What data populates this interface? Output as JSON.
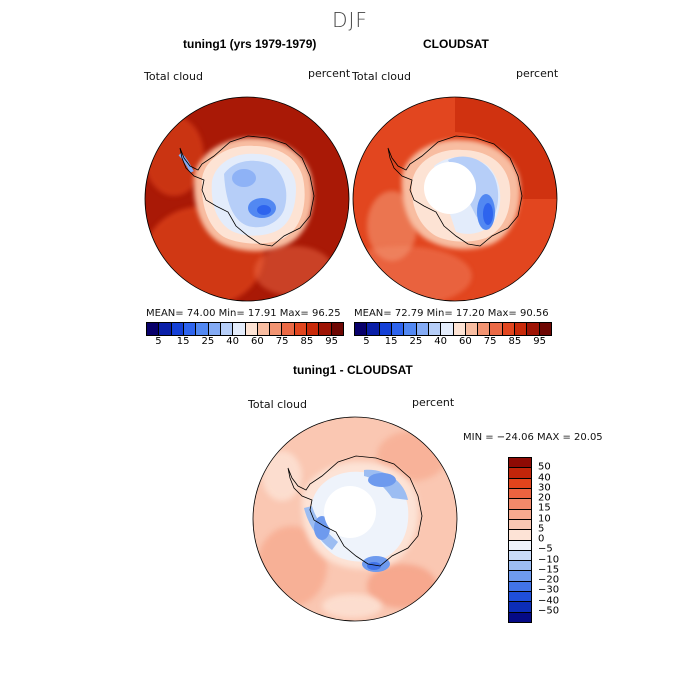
{
  "season": "DJF",
  "panels": {
    "left": {
      "title": "tuning1 (yrs 1979-1979)",
      "variable": "Total cloud",
      "units": "percent",
      "stats": "MEAN=   74.00   Min=   17.91   Max=   96.25"
    },
    "right": {
      "title": "CLOUDSAT",
      "variable": "Total cloud",
      "units": "percent",
      "stats": "MEAN=   72.79   Min=   17.20   Max=   90.56"
    },
    "diff": {
      "title": "tuning1 - CLOUDSAT",
      "variable": "Total cloud",
      "units": "percent",
      "stats": "MIN = −24.06  MAX =   20.05"
    }
  },
  "colorbar_abs": {
    "ticks": [
      "5",
      "15",
      "25",
      "40",
      "60",
      "75",
      "85",
      "95"
    ],
    "colors": [
      "#08006b",
      "#0a1fa8",
      "#1440d6",
      "#2e64ee",
      "#5288f2",
      "#84abf5",
      "#b6cef8",
      "#e3ecfb",
      "#fde3d4",
      "#f8bda1",
      "#f29472",
      "#eb6a46",
      "#e2461f",
      "#c92a0a",
      "#9e1405",
      "#6e0703"
    ]
  },
  "colorbar_diff": {
    "ticks": [
      "50",
      "40",
      "30",
      "20",
      "15",
      "10",
      "5",
      "0",
      "−5",
      "−10",
      "−15",
      "−20",
      "−30",
      "−40",
      "−50"
    ],
    "colors": [
      "#8e0a04",
      "#c2250a",
      "#e2441c",
      "#ec6340",
      "#f3896a",
      "#f7aa8f",
      "#fac7b2",
      "#fde3d6",
      "#eef3fb",
      "#c9dbf7",
      "#9cbdf2",
      "#6e9aee",
      "#4274e8",
      "#1f4fda",
      "#0c2db8",
      "#050a86"
    ]
  }
}
